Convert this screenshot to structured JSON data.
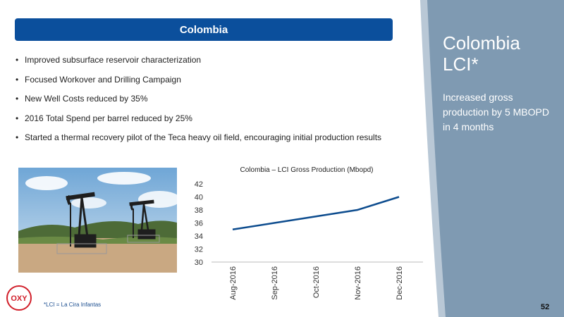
{
  "header": {
    "title": "Colombia"
  },
  "bullets": [
    "Improved subsurface reservoir characterization",
    "Focused Workover and Drilling Campaign",
    "New Well Costs reduced by 35%",
    "2016 Total Spend per barrel reduced by 25%",
    "Started a thermal recovery pilot of the Teca heavy oil field, encouraging initial production results"
  ],
  "side": {
    "title_line1": "Colombia",
    "title_line2": "LCI*",
    "text": "Increased gross production by 5 MBOPD in 4 months"
  },
  "colors": {
    "title_bar": "#0b4f9c",
    "side_panel": "#7f9ab2",
    "side_stripe": "#b9c8d6",
    "line": "#0d4c8e"
  },
  "photo": {
    "icon": "oil-pumpjacks-photo"
  },
  "chart_data": {
    "type": "line",
    "title": "Colombia – LCI Gross Production (Mbopd)",
    "categories": [
      "Aug-2016",
      "Sep-2016",
      "Oct-2016",
      "Nov-2016",
      "Dec-2016"
    ],
    "values": [
      35,
      36,
      37,
      38,
      40
    ],
    "yticks": [
      "30",
      "32",
      "34",
      "36",
      "38",
      "40",
      "42"
    ],
    "ylim": [
      30,
      42
    ],
    "grid": false,
    "legend": "none"
  },
  "footer": {
    "logo_text": "OXY",
    "footnote": "*LCI = La Cira Infantas",
    "page_number": "52"
  }
}
